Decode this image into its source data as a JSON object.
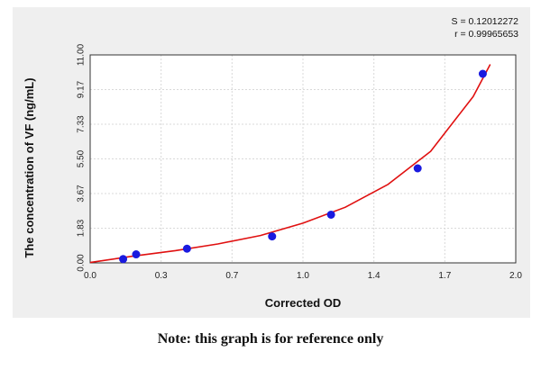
{
  "chart_data": {
    "type": "scatter",
    "title": "",
    "xlabel": "Corrected OD",
    "ylabel": "The concentration of VF (ng/mL)",
    "xlim": [
      0.0,
      2.0
    ],
    "ylim": [
      0.0,
      11.0
    ],
    "x_ticks": [
      "0.0",
      "0.3",
      "0.7",
      "1.0",
      "1.4",
      "1.7",
      "2.0"
    ],
    "y_ticks": [
      "0.00",
      "1.83",
      "3.67",
      "5.50",
      "7.33",
      "9.17",
      "11.00"
    ],
    "grid": true,
    "series": [
      {
        "values_x": [
          0.155,
          0.216,
          0.455,
          0.855,
          1.132,
          1.539,
          1.845
        ],
        "values_y": [
          0.2,
          0.45,
          0.75,
          1.4,
          2.55,
          5.0,
          10.0
        ],
        "color": "#1a1adf"
      }
    ],
    "fit_curve": {
      "type": "exponential-like",
      "color": "#e01010",
      "x": [
        0.0,
        0.2,
        0.4,
        0.6,
        0.8,
        1.0,
        1.2,
        1.4,
        1.6,
        1.8,
        1.88
      ],
      "y": [
        0.02,
        0.35,
        0.65,
        1.0,
        1.45,
        2.1,
        2.95,
        4.15,
        5.9,
        8.8,
        10.5
      ]
    },
    "annotations": [
      "S = 0.12012272",
      "r = 0.99965653"
    ]
  },
  "note": "Note: this graph is for reference only"
}
